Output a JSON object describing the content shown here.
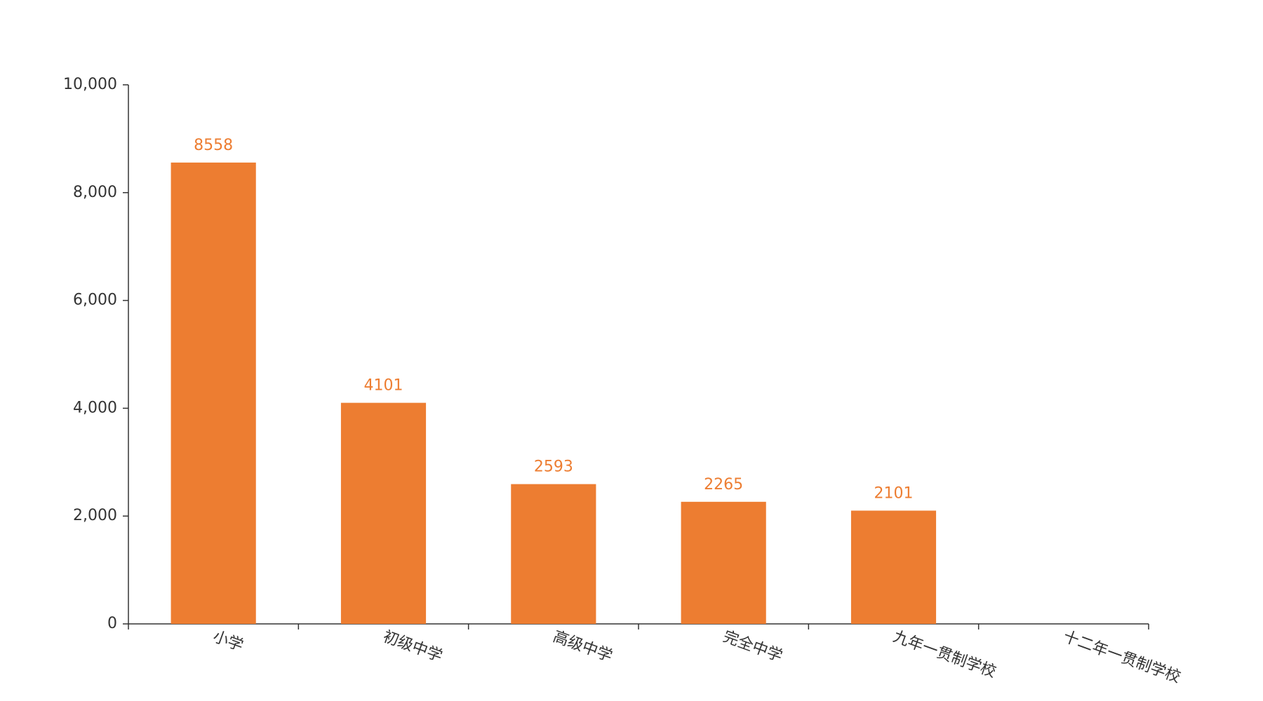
{
  "chart_data": {
    "type": "bar",
    "categories": [
      "小学",
      "初级中学",
      "高级中学",
      "完全中学",
      "九年一贯制学校",
      "十二年一贯制学校"
    ],
    "values": [
      8558,
      4101,
      2593,
      2265,
      2101,
      null
    ],
    "color": "#ed7d31",
    "ylim": [
      0,
      10000
    ],
    "yticks": [
      0,
      {
        "value": 2000,
        "label": "2,000"
      },
      {
        "value": 4000,
        "label": "4,000"
      },
      {
        "value": 6000,
        "label": "6,000"
      },
      {
        "value": 8000,
        "label": "8,000"
      },
      {
        "value": 10000,
        "label": "10,000"
      }
    ]
  }
}
